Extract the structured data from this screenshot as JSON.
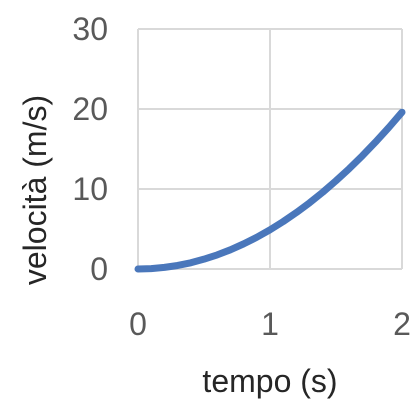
{
  "chart_data": {
    "type": "line",
    "title": "",
    "xlabel": "tempo (s)",
    "ylabel": "velocità (m/s)",
    "xlim": [
      0,
      2
    ],
    "ylim": [
      0,
      30
    ],
    "xticks": [
      0,
      1,
      2
    ],
    "yticks": [
      0,
      10,
      20,
      30
    ],
    "xtick_labels": [
      "0",
      "1",
      "2"
    ],
    "ytick_labels": [
      "0",
      "10",
      "20",
      "30"
    ],
    "grid": true,
    "legend": "none",
    "series": [
      {
        "color": "#4a77bb",
        "x": [
          0,
          0.1,
          0.2,
          0.3,
          0.4,
          0.5,
          0.6,
          0.7,
          0.8,
          0.9,
          1.0,
          1.1,
          1.2,
          1.3,
          1.4,
          1.5,
          1.6,
          1.7,
          1.8,
          1.9,
          2.0
        ],
        "y": [
          0,
          0.05,
          0.2,
          0.44,
          0.78,
          1.23,
          1.76,
          2.4,
          3.14,
          3.97,
          4.9,
          5.93,
          7.06,
          8.28,
          9.6,
          11.03,
          12.54,
          14.16,
          15.88,
          17.69,
          19.6
        ]
      }
    ]
  }
}
